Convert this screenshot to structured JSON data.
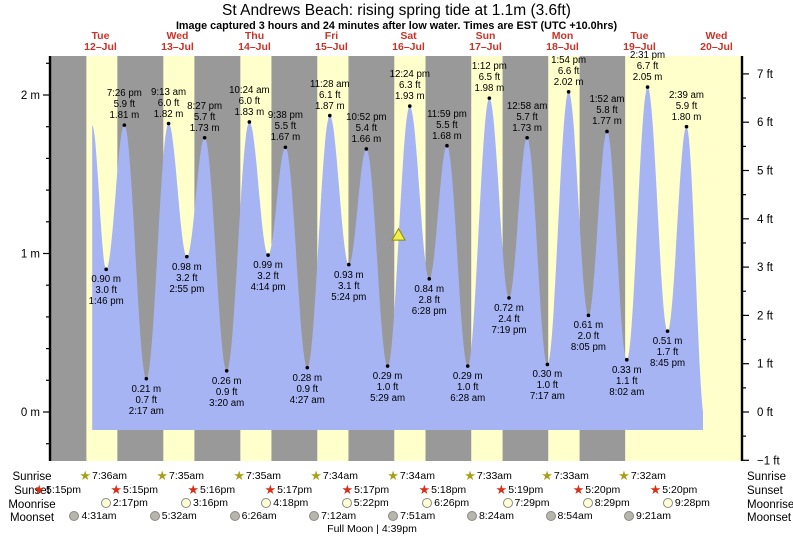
{
  "title": "St Andrews Beach: rising  spring tide at 1.1m (3.6ft)",
  "subtitle": "Image captured 3 hours and 24 minutes after low water. Times are EST (UTC +10.0hrs)",
  "footnote": "Full Moon | 4:39pm",
  "colors": {
    "day_band": "#ffffcc",
    "night_band": "#999999",
    "water": "#a6b4f4",
    "day_label_red": "#cc3328",
    "axis_black": "#000000",
    "sunrise_star": "#a8a018",
    "sunset_star": "#d83018",
    "moonrise_fill": "#ffffd6",
    "moonset_fill": "#b6b6ac",
    "now_marker_fill": "#f2ee4e",
    "now_marker_stroke": "#8a8a00"
  },
  "chart_data": {
    "type": "area",
    "title": "St Andrews Beach: rising  spring tide at 1.1m (3.6ft)",
    "x_axis_days": [
      {
        "name": "Tue",
        "date": "12–Jul"
      },
      {
        "name": "Wed",
        "date": "13–Jul"
      },
      {
        "name": "Thu",
        "date": "14–Jul"
      },
      {
        "name": "Fri",
        "date": "15–Jul"
      },
      {
        "name": "Sat",
        "date": "16–Jul"
      },
      {
        "name": "Sun",
        "date": "17–Jul"
      },
      {
        "name": "Mon",
        "date": "18–Jul"
      },
      {
        "name": "Tue",
        "date": "19–Jul"
      },
      {
        "name": "Wed",
        "date": "20–Jul"
      }
    ],
    "y_axis_left_ticks": [
      {
        "label": "2 m",
        "value": 2
      },
      {
        "label": "1 m",
        "value": 1
      },
      {
        "label": "0 m",
        "value": 0
      }
    ],
    "y_axis_right_ticks": [
      {
        "label": "7 ft",
        "value": 7
      },
      {
        "label": "6 ft",
        "value": 6
      },
      {
        "label": "5 ft",
        "value": 5
      },
      {
        "label": "4 ft",
        "value": 4
      },
      {
        "label": "3 ft",
        "value": 3
      },
      {
        "label": "2 ft",
        "value": 2
      },
      {
        "label": "1 ft",
        "value": 1
      },
      {
        "label": "0 ft",
        "value": 0
      },
      {
        "label": "−1 ft",
        "value": -1
      }
    ],
    "tide_events": [
      {
        "type": "high",
        "t_hours": 9.4,
        "m": 1.81,
        "labeled": false
      },
      {
        "type": "low",
        "day": 0,
        "time": "1:46 pm",
        "ft": "3.0 ft",
        "m": 0.9
      },
      {
        "type": "high",
        "day": 0,
        "time": "7:26 pm",
        "ft": "5.9 ft",
        "m": 1.81
      },
      {
        "type": "low",
        "day": 1,
        "time": "2:17 am",
        "ft": "0.7 ft",
        "m": 0.21
      },
      {
        "type": "high",
        "day": 1,
        "time": "9:13 am",
        "ft": "6.0 ft",
        "m": 1.82
      },
      {
        "type": "low",
        "day": 1,
        "time": "2:55 pm",
        "ft": "3.2 ft",
        "m": 0.98
      },
      {
        "type": "high",
        "day": 1,
        "time": "8:27 pm",
        "ft": "5.7 ft",
        "m": 1.73
      },
      {
        "type": "low",
        "day": 2,
        "time": "3:20 am",
        "ft": "0.9 ft",
        "m": 0.26
      },
      {
        "type": "high",
        "day": 2,
        "time": "10:24 am",
        "ft": "6.0 ft",
        "m": 1.83
      },
      {
        "type": "low",
        "day": 2,
        "time": "4:14 pm",
        "ft": "3.2 ft",
        "m": 0.99
      },
      {
        "type": "high",
        "day": 2,
        "time": "9:38 pm",
        "ft": "5.5 ft",
        "m": 1.67
      },
      {
        "type": "low",
        "day": 3,
        "time": "4:27 am",
        "ft": "0.9 ft",
        "m": 0.28
      },
      {
        "type": "high",
        "day": 3,
        "time": "11:28 am",
        "ft": "6.1 ft",
        "m": 1.87
      },
      {
        "type": "low",
        "day": 3,
        "time": "5:24 pm",
        "ft": "3.1 ft",
        "m": 0.93
      },
      {
        "type": "high",
        "day": 3,
        "time": "10:52 pm",
        "ft": "5.4 ft",
        "m": 1.66
      },
      {
        "type": "low",
        "day": 4,
        "time": "5:29 am",
        "ft": "1.0 ft",
        "m": 0.29
      },
      {
        "type": "high",
        "day": 4,
        "time": "12:24 pm",
        "ft": "6.3 ft",
        "m": 1.93
      },
      {
        "type": "low",
        "day": 4,
        "time": "6:28 pm",
        "ft": "2.8 ft",
        "m": 0.84
      },
      {
        "type": "high",
        "day": 4,
        "time": "11:59 pm",
        "ft": "5.5 ft",
        "m": 1.68
      },
      {
        "type": "low",
        "day": 5,
        "time": "6:28 am",
        "ft": "1.0 ft",
        "m": 0.29
      },
      {
        "type": "high",
        "day": 5,
        "time": "1:12 pm",
        "ft": "6.5 ft",
        "m": 1.98
      },
      {
        "type": "low",
        "day": 5,
        "time": "7:19 pm",
        "ft": "2.4 ft",
        "m": 0.72
      },
      {
        "type": "high",
        "day": 6,
        "time": "12:58 am",
        "ft": "5.7 ft",
        "m": 1.73
      },
      {
        "type": "low",
        "day": 6,
        "time": "7:17 am",
        "ft": "1.0 ft",
        "m": 0.3
      },
      {
        "type": "high",
        "day": 6,
        "time": "1:54 pm",
        "ft": "6.6 ft",
        "m": 2.02
      },
      {
        "type": "low",
        "day": 6,
        "time": "8:05 pm",
        "ft": "2.0 ft",
        "m": 0.61
      },
      {
        "type": "high",
        "day": 7,
        "time": "1:52 am",
        "ft": "5.8 ft",
        "m": 1.77
      },
      {
        "type": "low",
        "day": 7,
        "time": "8:02 am",
        "ft": "1.1 ft",
        "m": 0.33
      },
      {
        "type": "high",
        "day": 7,
        "time": "2:31 pm",
        "ft": "6.7 ft",
        "m": 2.05
      },
      {
        "type": "low",
        "day": 7,
        "time": "8:45 pm",
        "ft": "1.7 ft",
        "m": 0.51
      },
      {
        "type": "high",
        "day": 8,
        "time": "2:39 am",
        "ft": "5.9 ft",
        "m": 1.8
      },
      {
        "type": "low",
        "t_hours": 200.4,
        "m": -0.05,
        "labeled": false
      }
    ],
    "now_marker": {
      "m": 1.1,
      "t_hours": 104.9
    }
  },
  "almanac": {
    "rows": [
      {
        "id": "sunrise",
        "label": "Sunrise",
        "icon": "star",
        "color": "#a8a018",
        "entries": [
          {
            "day": 0,
            "time": "7:36am"
          },
          {
            "day": 1,
            "time": "7:35am"
          },
          {
            "day": 2,
            "time": "7:35am"
          },
          {
            "day": 3,
            "time": "7:34am"
          },
          {
            "day": 4,
            "time": "7:34am"
          },
          {
            "day": 5,
            "time": "7:33am"
          },
          {
            "day": 6,
            "time": "7:33am"
          },
          {
            "day": 7,
            "time": "7:32am"
          }
        ]
      },
      {
        "id": "sunset",
        "label": "Sunset",
        "icon": "star",
        "color": "#d83018",
        "entries": [
          {
            "day": -1,
            "time": "5:15pm"
          },
          {
            "day": 0,
            "time": "5:15pm"
          },
          {
            "day": 1,
            "time": "5:16pm"
          },
          {
            "day": 2,
            "time": "5:17pm"
          },
          {
            "day": 3,
            "time": "5:17pm"
          },
          {
            "day": 4,
            "time": "5:18pm"
          },
          {
            "day": 5,
            "time": "5:19pm"
          },
          {
            "day": 6,
            "time": "5:20pm"
          },
          {
            "day": 7,
            "time": "5:20pm"
          }
        ]
      },
      {
        "id": "moonrise",
        "label": "Moonrise",
        "icon": "circle",
        "color": "#ffffd6",
        "entries": [
          {
            "day": 0,
            "time": "2:17pm"
          },
          {
            "day": 1,
            "time": "3:16pm"
          },
          {
            "day": 2,
            "time": "4:18pm"
          },
          {
            "day": 3,
            "time": "5:22pm"
          },
          {
            "day": 4,
            "time": "6:26pm"
          },
          {
            "day": 5,
            "time": "7:29pm"
          },
          {
            "day": 6,
            "time": "8:29pm"
          },
          {
            "day": 7,
            "time": "9:28pm"
          }
        ]
      },
      {
        "id": "moonset",
        "label": "Moonset",
        "icon": "circle",
        "color": "#b6b6ac",
        "entries": [
          {
            "day": 0,
            "time": "4:31am"
          },
          {
            "day": 1,
            "time": "5:32am"
          },
          {
            "day": 2,
            "time": "6:26am"
          },
          {
            "day": 3,
            "time": "7:12am"
          },
          {
            "day": 4,
            "time": "7:51am"
          },
          {
            "day": 5,
            "time": "8:24am"
          },
          {
            "day": 6,
            "time": "8:54am"
          },
          {
            "day": 7,
            "time": "9:21am"
          }
        ]
      }
    ]
  }
}
